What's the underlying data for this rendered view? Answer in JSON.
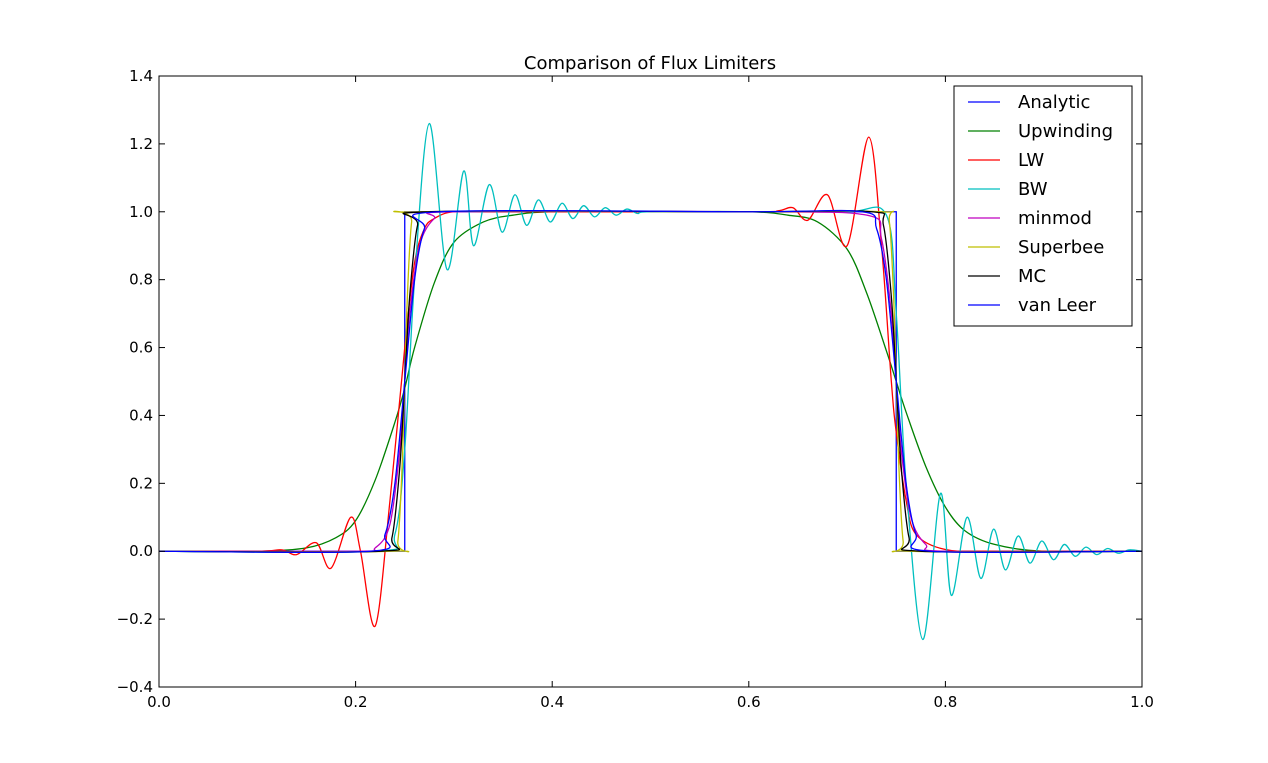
{
  "chart_data": {
    "type": "line",
    "title": "Comparison of Flux Limiters",
    "xlabel": "",
    "ylabel": "",
    "xlim": [
      0.0,
      1.0
    ],
    "ylim": [
      -0.4,
      1.4
    ],
    "xticks": [
      "0.0",
      "0.2",
      "0.4",
      "0.6",
      "0.8",
      "1.0"
    ],
    "yticks": [
      "−0.4",
      "−0.2",
      "0.0",
      "0.2",
      "0.4",
      "0.6",
      "0.8",
      "1.0",
      "1.2",
      "1.4"
    ],
    "grid": false,
    "legend_position": "top-right",
    "series": [
      {
        "name": "Analytic",
        "color": "#0000ff",
        "x": [
          0.0,
          0.25,
          0.25,
          0.75,
          0.75,
          1.0
        ],
        "y": [
          0.0,
          0.0,
          1.0,
          1.0,
          0.0,
          0.0
        ]
      },
      {
        "name": "Upwinding",
        "color": "#008000",
        "x": [
          0.0,
          0.1,
          0.15,
          0.18,
          0.2,
          0.22,
          0.24,
          0.25,
          0.26,
          0.28,
          0.3,
          0.33,
          0.36,
          0.4,
          0.5,
          0.6,
          0.64,
          0.67,
          0.7,
          0.72,
          0.74,
          0.75,
          0.76,
          0.78,
          0.8,
          0.82,
          0.85,
          0.9,
          1.0
        ],
        "y": [
          0.0,
          0.0,
          0.01,
          0.04,
          0.09,
          0.21,
          0.38,
          0.48,
          0.6,
          0.79,
          0.91,
          0.97,
          0.99,
          1.0,
          1.0,
          1.0,
          0.99,
          0.97,
          0.89,
          0.76,
          0.59,
          0.5,
          0.41,
          0.25,
          0.13,
          0.06,
          0.02,
          0.0,
          0.0
        ]
      },
      {
        "name": "LW",
        "color": "#ff0000",
        "x": [
          0.0,
          0.1,
          0.125,
          0.14,
          0.16,
          0.175,
          0.195,
          0.205,
          0.22,
          0.235,
          0.25,
          0.26,
          0.27,
          0.28,
          0.3,
          0.35,
          0.6,
          0.63,
          0.645,
          0.66,
          0.68,
          0.7,
          0.722,
          0.735,
          0.745,
          0.75,
          0.76,
          0.77,
          0.8,
          0.85,
          1.0
        ],
        "y": [
          0.0,
          0.0,
          0.004,
          -0.01,
          0.025,
          -0.05,
          0.1,
          0.0,
          -0.22,
          0.15,
          0.6,
          0.85,
          0.95,
          0.98,
          1.0,
          1.0,
          1.0,
          1.003,
          1.012,
          0.975,
          1.05,
          0.9,
          1.22,
          0.9,
          0.5,
          0.35,
          0.15,
          0.05,
          0.005,
          0.0,
          0.0
        ]
      },
      {
        "name": "BW",
        "color": "#00bfbf",
        "x": [
          0.0,
          0.22,
          0.24,
          0.25,
          0.26,
          0.275,
          0.293,
          0.31,
          0.32,
          0.336,
          0.349,
          0.362,
          0.374,
          0.386,
          0.398,
          0.41,
          0.421,
          0.432,
          0.443,
          0.454,
          0.465,
          0.476,
          0.487,
          0.5,
          0.6,
          0.7,
          0.74,
          0.75,
          0.76,
          0.777,
          0.795,
          0.806,
          0.822,
          0.836,
          0.849,
          0.861,
          0.874,
          0.886,
          0.898,
          0.91,
          0.921,
          0.932,
          0.943,
          0.954,
          0.965,
          0.976,
          0.987,
          1.0
        ],
        "y": [
          0.0,
          0.0,
          0.05,
          0.3,
          0.8,
          1.26,
          0.83,
          1.12,
          0.9,
          1.08,
          0.94,
          1.05,
          0.96,
          1.035,
          0.97,
          1.025,
          0.98,
          1.018,
          0.985,
          1.012,
          0.99,
          1.008,
          0.995,
          1.0,
          1.0,
          1.0,
          0.99,
          0.7,
          0.2,
          -0.26,
          0.17,
          -0.13,
          0.1,
          -0.08,
          0.065,
          -0.055,
          0.045,
          -0.035,
          0.03,
          -0.025,
          0.02,
          -0.015,
          0.012,
          -0.01,
          0.008,
          -0.006,
          0.004,
          0.0
        ]
      },
      {
        "name": "minmod",
        "color": "#bf00bf",
        "x": [
          0.0,
          0.2,
          0.22,
          0.235,
          0.245,
          0.25,
          0.255,
          0.265,
          0.28,
          0.3,
          0.6,
          0.72,
          0.735,
          0.745,
          0.75,
          0.755,
          0.765,
          0.78,
          0.8,
          1.0
        ],
        "y": [
          0.0,
          0.0,
          0.01,
          0.08,
          0.3,
          0.5,
          0.7,
          0.9,
          0.98,
          1.0,
          1.0,
          0.99,
          0.92,
          0.7,
          0.5,
          0.3,
          0.1,
          0.02,
          0.0,
          0.0
        ]
      },
      {
        "name": "Superbee",
        "color": "#bfbf00",
        "x": [
          0.0,
          0.235,
          0.243,
          0.248,
          0.252,
          0.257,
          0.265,
          0.6,
          0.735,
          0.743,
          0.748,
          0.752,
          0.757,
          0.765,
          1.0
        ],
        "y": [
          0.0,
          0.0,
          0.03,
          0.3,
          0.7,
          0.97,
          1.0,
          1.0,
          1.0,
          0.97,
          0.7,
          0.3,
          0.03,
          0.0,
          0.0
        ]
      },
      {
        "name": "MC",
        "color": "#000000",
        "x": [
          0.0,
          0.225,
          0.237,
          0.245,
          0.25,
          0.255,
          0.263,
          0.275,
          0.6,
          0.725,
          0.737,
          0.745,
          0.75,
          0.755,
          0.763,
          0.775,
          1.0
        ],
        "y": [
          0.0,
          0.0,
          0.04,
          0.25,
          0.5,
          0.75,
          0.96,
          1.0,
          1.0,
          1.0,
          0.96,
          0.75,
          0.5,
          0.25,
          0.04,
          0.0,
          0.0
        ]
      },
      {
        "name": "van Leer",
        "color": "#0000ff",
        "x": [
          0.0,
          0.215,
          0.23,
          0.24,
          0.25,
          0.26,
          0.27,
          0.285,
          0.6,
          0.715,
          0.73,
          0.74,
          0.75,
          0.76,
          0.77,
          0.785,
          1.0
        ],
        "y": [
          0.0,
          0.0,
          0.05,
          0.2,
          0.5,
          0.8,
          0.95,
          1.0,
          1.0,
          1.0,
          0.95,
          0.8,
          0.5,
          0.2,
          0.05,
          0.0,
          0.0
        ]
      }
    ]
  }
}
